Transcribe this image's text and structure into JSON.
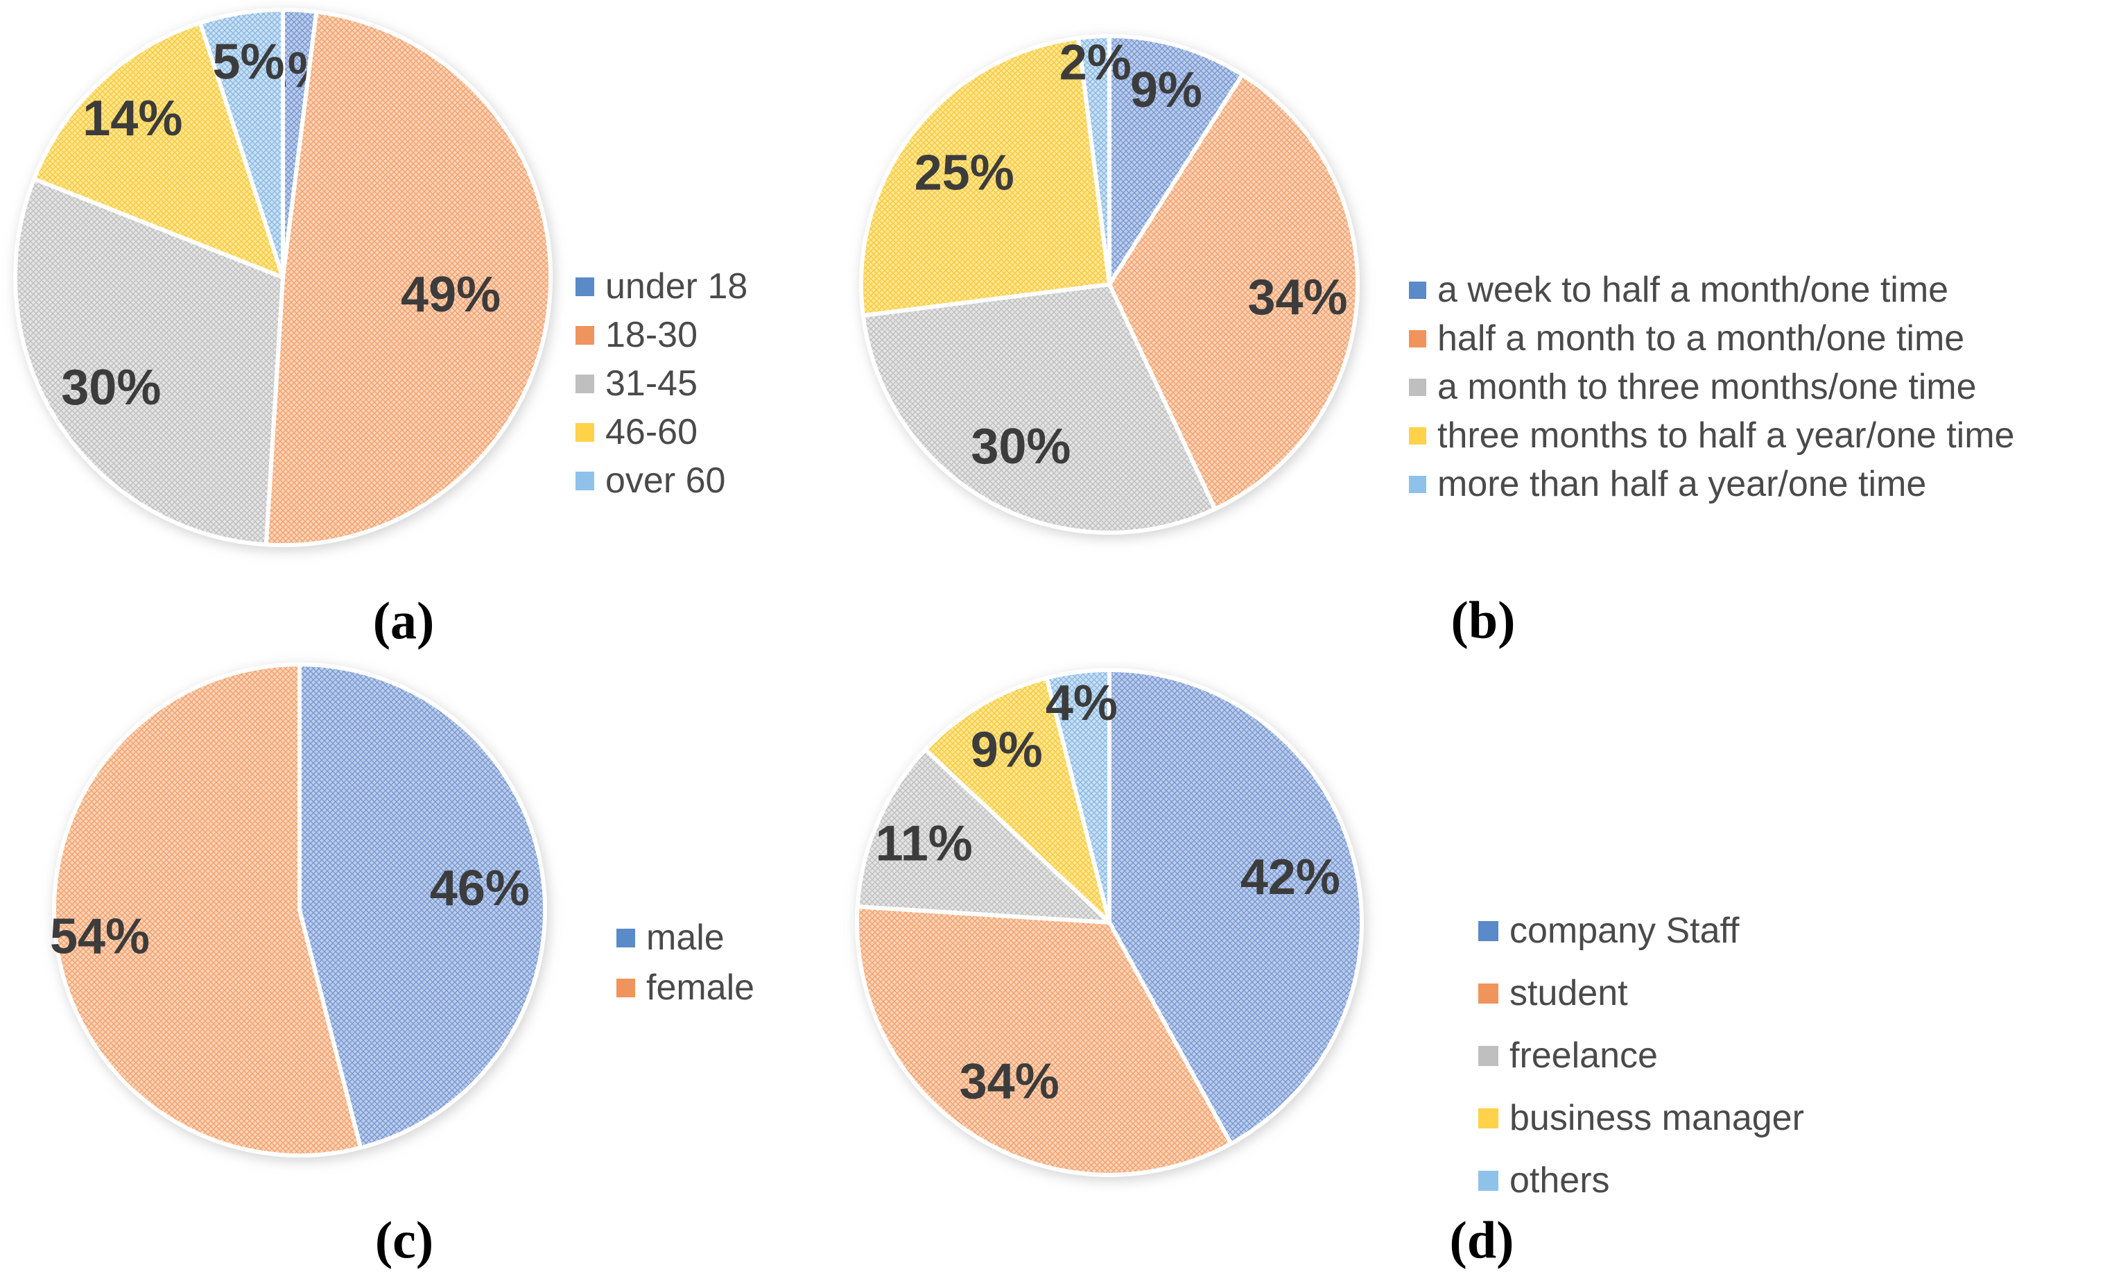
{
  "figure": {
    "background_color": "#ffffff",
    "data_label_color": "#3c3c3c",
    "legend_text_color": "#4a4a4a",
    "value_suffix": "%"
  },
  "palette": {
    "blue": {
      "base": "#4472C4",
      "tint": "#BCCCE9",
      "marker": "#5A8AC8"
    },
    "orange": {
      "base": "#ED7D31",
      "tint": "#FAD2B8",
      "marker": "#F0945E"
    },
    "gray": {
      "base": "#A3A3A3",
      "tint": "#E3E3E3",
      "marker": "#BFBFBF"
    },
    "yellow": {
      "base": "#F0B400",
      "tint": "#FFE692",
      "marker": "#FFD24A"
    },
    "lightblue": {
      "base": "#5B9BD5",
      "tint": "#C9E0F4",
      "marker": "#8FC2E9"
    }
  },
  "chart_data": [
    {
      "id": "a",
      "type": "pie",
      "caption": "(a)",
      "legend_position": "right",
      "start_angle_deg": 0,
      "direction": "clockwise",
      "slices": [
        {
          "label": "under 18",
          "value": 2,
          "color": "blue"
        },
        {
          "label": "18-30",
          "value": 49,
          "color": "orange"
        },
        {
          "label": "31-45",
          "value": 30,
          "color": "gray"
        },
        {
          "label": "46-60",
          "value": 14,
          "color": "yellow"
        },
        {
          "label": "over 60",
          "value": 5,
          "color": "lightblue"
        }
      ]
    },
    {
      "id": "b",
      "type": "pie",
      "caption": "(b)",
      "legend_position": "right",
      "start_angle_deg": 0,
      "direction": "clockwise",
      "slices": [
        {
          "label": "a week to half a month/one time",
          "value": 9,
          "color": "blue"
        },
        {
          "label": "half a month to a month/one time",
          "value": 34,
          "color": "orange"
        },
        {
          "label": "a month to three months/one time",
          "value": 30,
          "color": "gray"
        },
        {
          "label": "three months to half a year/one time",
          "value": 25,
          "color": "yellow"
        },
        {
          "label": "more than half a year/one time",
          "value": 2,
          "color": "lightblue"
        }
      ]
    },
    {
      "id": "c",
      "type": "pie",
      "caption": "(c)",
      "legend_position": "right",
      "start_angle_deg": 0,
      "direction": "clockwise",
      "slices": [
        {
          "label": "male",
          "value": 46,
          "color": "blue"
        },
        {
          "label": "female",
          "value": 54,
          "color": "orange"
        }
      ]
    },
    {
      "id": "d",
      "type": "pie",
      "caption": "(d)",
      "legend_position": "right",
      "start_angle_deg": 0,
      "direction": "clockwise",
      "slices": [
        {
          "label": "company Staff",
          "value": 42,
          "color": "blue"
        },
        {
          "label": "student",
          "value": 34,
          "color": "orange"
        },
        {
          "label": "freelance",
          "value": 11,
          "color": "gray"
        },
        {
          "label": "business manager",
          "value": 9,
          "color": "yellow"
        },
        {
          "label": "others",
          "value": 4,
          "color": "lightblue"
        }
      ]
    }
  ]
}
